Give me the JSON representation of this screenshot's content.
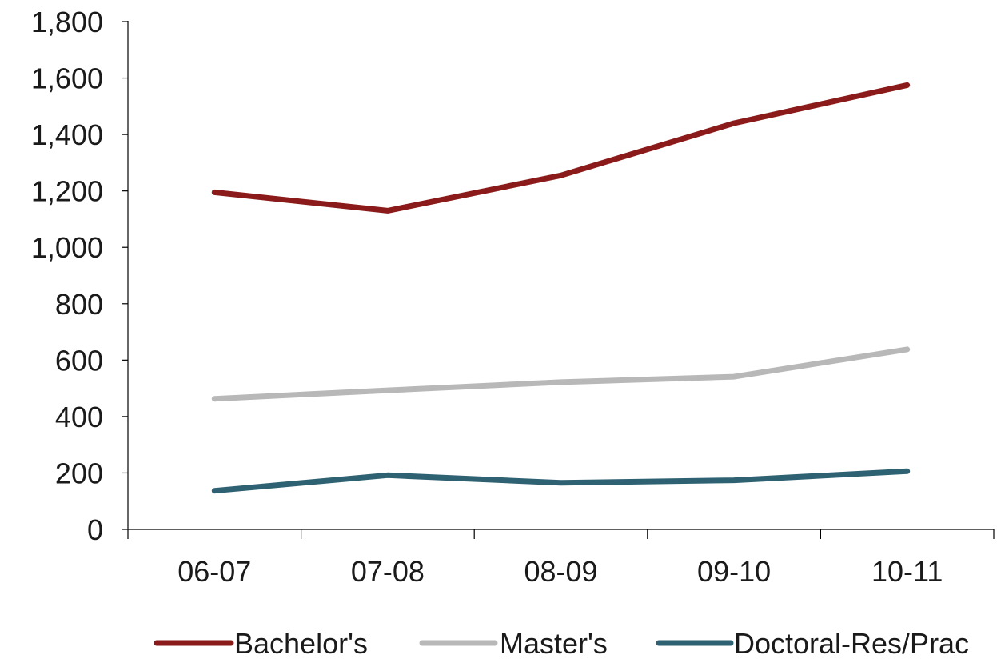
{
  "chart_data": {
    "type": "line",
    "categories": [
      "06-07",
      "07-08",
      "08-09",
      "09-10",
      "10-11"
    ],
    "series": [
      {
        "name": "Bachelor's",
        "color": "#8b1a1a",
        "values": [
          1195,
          1130,
          1255,
          1440,
          1575
        ]
      },
      {
        "name": "Master's",
        "color": "#b8b8b8",
        "values": [
          463,
          493,
          522,
          541,
          638
        ]
      },
      {
        "name": "Doctoral-Res/Prac",
        "color": "#2e6272",
        "values": [
          137,
          192,
          165,
          174,
          206
        ]
      }
    ],
    "ylim": [
      0,
      1800
    ],
    "yticks": [
      {
        "value": 0,
        "label": "0"
      },
      {
        "value": 200,
        "label": "200"
      },
      {
        "value": 400,
        "label": "400"
      },
      {
        "value": 600,
        "label": "600"
      },
      {
        "value": 800,
        "label": "800"
      },
      {
        "value": 1000,
        "label": "1,000"
      },
      {
        "value": 1200,
        "label": "1,200"
      },
      {
        "value": 1400,
        "label": "1,400"
      },
      {
        "value": 1600,
        "label": "1,600"
      },
      {
        "value": 1800,
        "label": "1,800"
      }
    ],
    "title": "",
    "xlabel": "",
    "ylabel": "",
    "grid": false,
    "legend_position": "bottom"
  }
}
